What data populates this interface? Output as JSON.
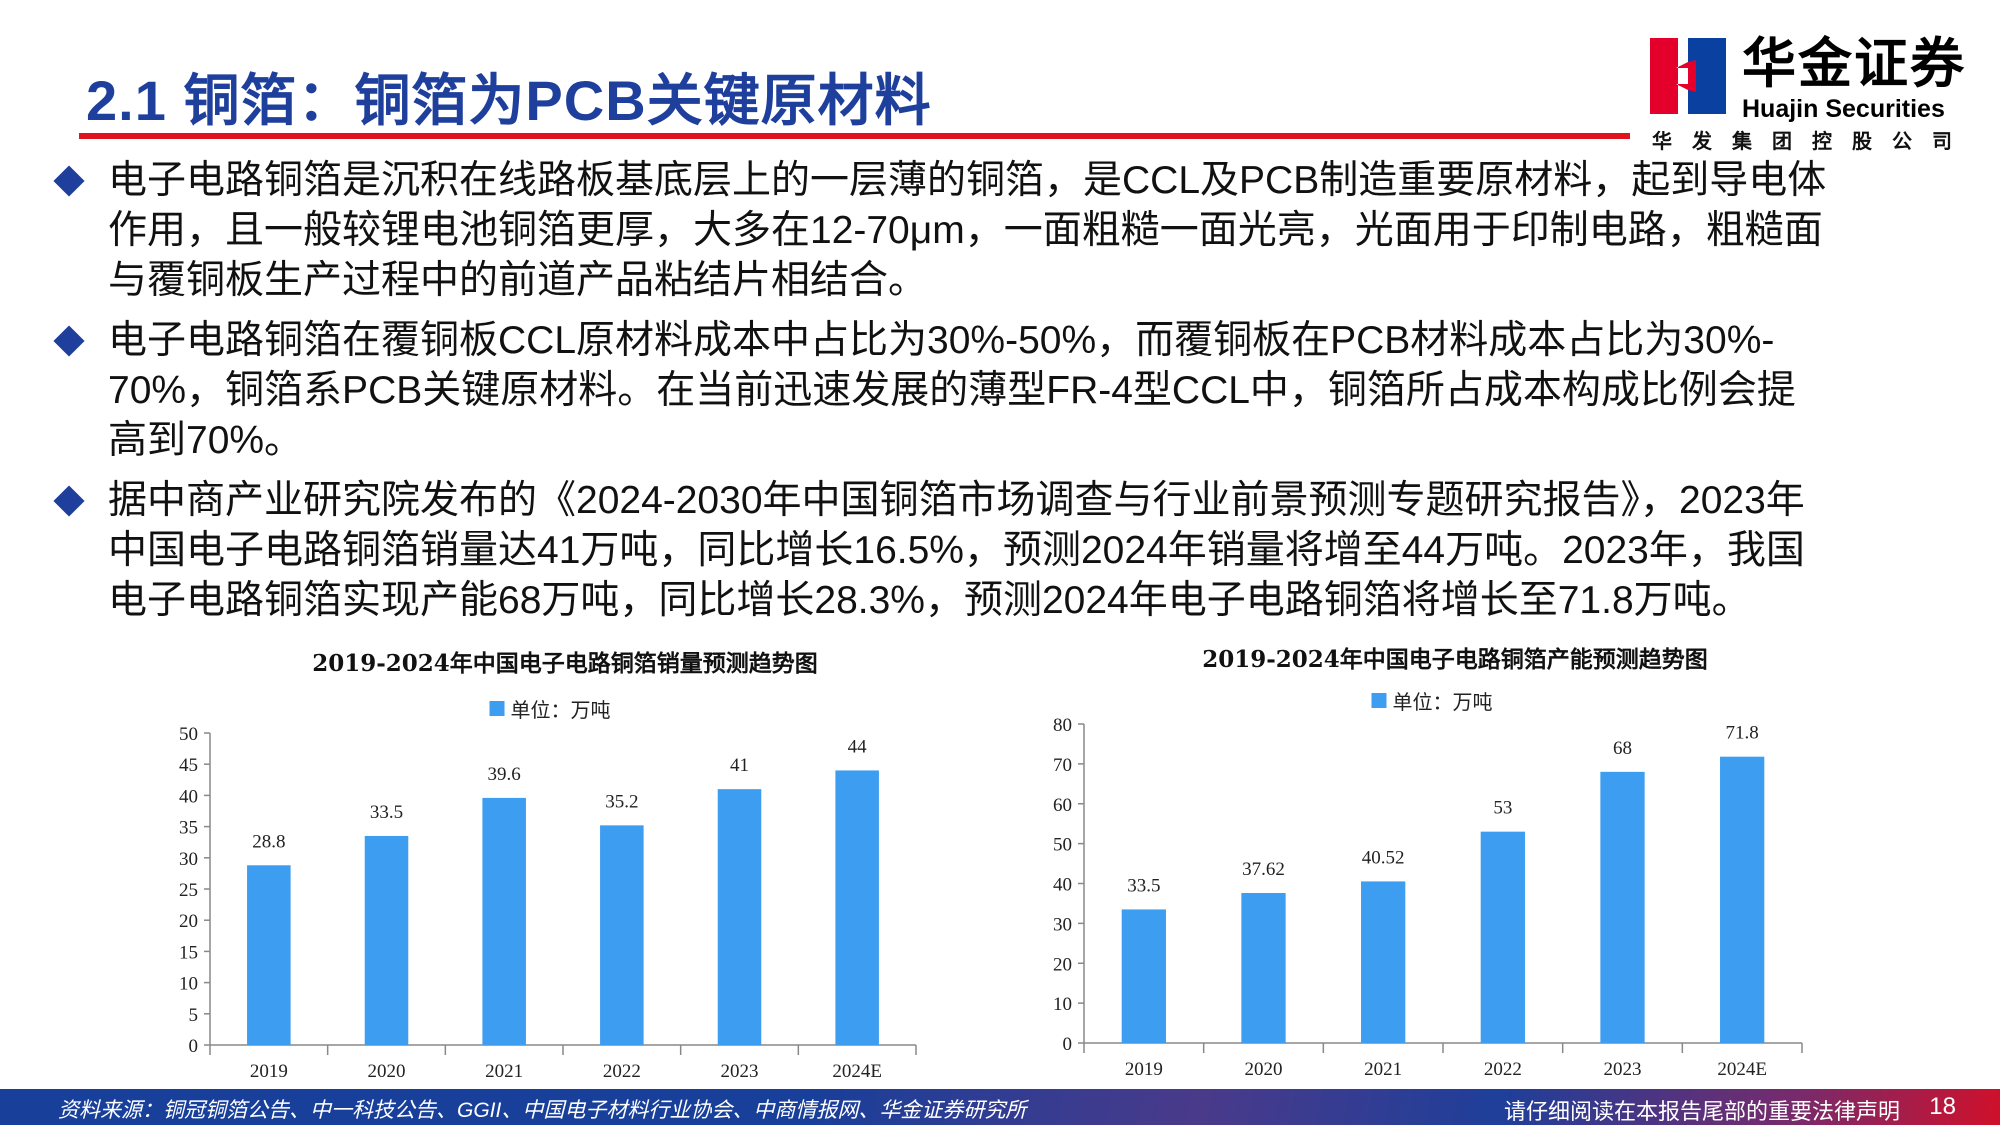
{
  "header": {
    "title": "2.1 铜箔：铜箔为PCB关键原材料",
    "logo_cn": "华金证券",
    "logo_en": "Huajin Securities",
    "logo_sub": "华发集团控股公司"
  },
  "bullets": [
    {
      "lines": [
        "电子电路铜箔是沉积在线路板基底层上的一层薄的铜箔，是CCL及PCB制造重要原材料，起到导电体",
        "作用，且一般较锂电池铜箔更厚，大多在12-70μm，一面粗糙一面光亮，光面用于印制电路，粗糙面",
        "与覆铜板生产过程中的前道产品粘结片相结合。"
      ]
    },
    {
      "lines": [
        "电子电路铜箔在覆铜板CCL原材料成本中占比为30%-50%，而覆铜板在PCB材料成本占比为30%-",
        "70%，铜箔系PCB关键原材料。在当前迅速发展的薄型FR-4型CCL中，铜箔所占成本构成比例会提",
        "高到70%。"
      ]
    },
    {
      "lines": [
        "据中商产业研究院发布的《2024-2030年中国铜箔市场调查与行业前景预测专题研究报告》，2023年",
        "中国电子电路铜箔销量达41万吨，同比增长16.5%，预测2024年销量将增至44万吨。2023年，我国",
        "电子电路铜箔实现产能68万吨，同比增长28.3%，预测2024年电子电路铜箔将增长至71.8万吨。"
      ]
    }
  ],
  "chart_data": [
    {
      "type": "bar",
      "title": "2019-2024年中国电子电路铜箔销量预测趋势图",
      "legend": "单位：万吨",
      "legend_position": "top",
      "categories": [
        "2019",
        "2020",
        "2021",
        "2022",
        "2023",
        "2024E"
      ],
      "values": [
        28.8,
        33.5,
        39.6,
        35.2,
        41,
        44
      ],
      "labels": [
        "28.8",
        "33.5",
        "39.6",
        "35.2",
        "41",
        "44"
      ],
      "ylim": [
        0,
        50
      ],
      "yticks": [
        0,
        5,
        10,
        15,
        20,
        25,
        30,
        35,
        40,
        45,
        50
      ],
      "grid": false,
      "color": "#3d9df0"
    },
    {
      "type": "bar",
      "title": "2019-2024年中国电子电路铜箔产能预测趋势图",
      "legend": "单位：万吨",
      "legend_position": "top",
      "categories": [
        "2019",
        "2020",
        "2021",
        "2022",
        "2023",
        "2024E"
      ],
      "values": [
        33.5,
        37.62,
        40.52,
        53,
        68,
        71.8
      ],
      "labels": [
        "33.5",
        "37.62",
        "40.52",
        "53",
        "68",
        "71.8"
      ],
      "ylim": [
        0,
        80
      ],
      "yticks": [
        0,
        10,
        20,
        30,
        40,
        50,
        60,
        70,
        80
      ],
      "grid": false,
      "color": "#3d9df0"
    }
  ],
  "footer": {
    "source": "资料来源：铜冠铜箔公告、中一科技公告、GGII、中国电子材料行业协会、中商情报网、华金证券研究所",
    "disclaimer": "请仔细阅读在本报告尾部的重要法律声明",
    "page": "18"
  }
}
